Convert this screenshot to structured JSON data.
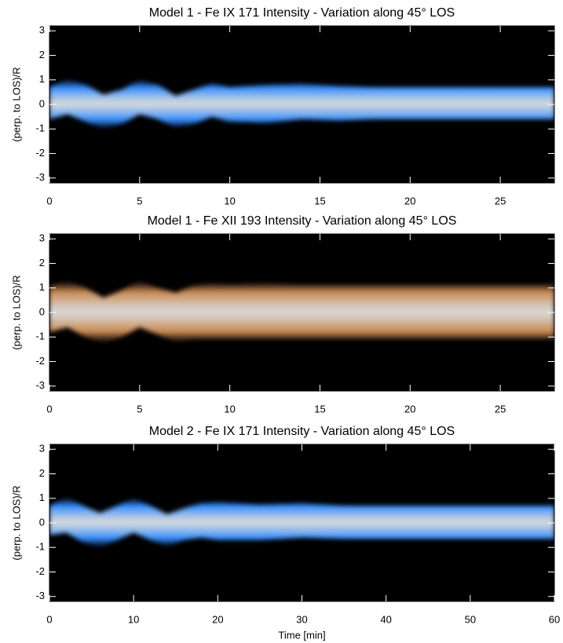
{
  "chart_data": [
    {
      "type": "band",
      "title": "Model 1 - Fe IX 171 Intensity - Variation along 45° LOS",
      "ylabel": "(perp. to LOS)/R",
      "color": "#2f8cff",
      "x": [
        0,
        1,
        2,
        3,
        4,
        5,
        6,
        7,
        8,
        9,
        10,
        12,
        14,
        16,
        18,
        20,
        22,
        24,
        26,
        28
      ],
      "series": [
        {
          "values": [
            0.7,
            1.05,
            0.8,
            0.4,
            0.6,
            1.0,
            0.8,
            0.35,
            0.6,
            0.85,
            0.7,
            0.8,
            0.85,
            0.75,
            0.7,
            0.7,
            0.7,
            0.7,
            0.7,
            0.7
          ]
        },
        {
          "values": [
            -0.6,
            -0.4,
            -0.7,
            -1.0,
            -0.8,
            -0.4,
            -0.6,
            -0.95,
            -0.8,
            -0.5,
            -0.7,
            -0.75,
            -0.6,
            -0.65,
            -0.6,
            -0.6,
            -0.6,
            -0.6,
            -0.6,
            -0.6
          ]
        }
      ],
      "xlim": [
        0,
        28
      ],
      "xticks": [
        0,
        5,
        10,
        15,
        20,
        25
      ],
      "ylim": [
        -3.2,
        3.2
      ],
      "yticks": [
        -3,
        -2,
        -1,
        0,
        1,
        2,
        3
      ]
    },
    {
      "type": "band",
      "title": "Model 1 - Fe XII 193 Intensity - Variation along 45° LOS",
      "ylabel": "(perp. to LOS)/R",
      "color": "#c8874c",
      "x": [
        0,
        1,
        2,
        3,
        4,
        5,
        6,
        7,
        8,
        9,
        10,
        12,
        14,
        16,
        18,
        20,
        22,
        24,
        26,
        28
      ],
      "series": [
        {
          "values": [
            1.1,
            1.3,
            1.0,
            0.6,
            0.9,
            1.3,
            1.0,
            0.8,
            1.1,
            1.2,
            1.15,
            1.2,
            1.15,
            1.15,
            1.15,
            1.15,
            1.15,
            1.15,
            1.15,
            1.15
          ]
        },
        {
          "values": [
            -0.8,
            -0.6,
            -1.0,
            -1.25,
            -1.0,
            -0.6,
            -0.9,
            -1.2,
            -1.1,
            -1.1,
            -1.1,
            -1.1,
            -1.1,
            -1.1,
            -1.1,
            -1.1,
            -1.1,
            -1.1,
            -1.1,
            -1.1
          ]
        }
      ],
      "xlim": [
        0,
        28
      ],
      "xticks": [
        0,
        5,
        10,
        15,
        20,
        25
      ],
      "ylim": [
        -3.2,
        3.2
      ],
      "yticks": [
        -3,
        -2,
        -1,
        0,
        1,
        2,
        3
      ]
    },
    {
      "type": "band",
      "title": "Model 2 - Fe IX 171 Intensity - Variation along 45° LOS",
      "ylabel": "(perp. to LOS)/R",
      "xlabel": "Time [min]",
      "color": "#2f8cff",
      "x": [
        0,
        2,
        4,
        6,
        8,
        10,
        12,
        14,
        16,
        18,
        20,
        25,
        30,
        35,
        40,
        45,
        50,
        55,
        60
      ],
      "series": [
        {
          "values": [
            0.7,
            1.05,
            0.7,
            0.4,
            0.7,
            1.0,
            0.7,
            0.35,
            0.6,
            0.8,
            0.85,
            0.75,
            0.8,
            0.7,
            0.7,
            0.7,
            0.7,
            0.7,
            0.7
          ]
        },
        {
          "values": [
            -0.5,
            -0.4,
            -0.8,
            -1.0,
            -0.7,
            -0.4,
            -0.7,
            -0.95,
            -0.7,
            -0.6,
            -0.7,
            -0.7,
            -0.6,
            -0.65,
            -0.65,
            -0.65,
            -0.65,
            -0.65,
            -0.65
          ]
        }
      ],
      "xlim": [
        0,
        60
      ],
      "xticks": [
        0,
        10,
        20,
        30,
        40,
        50,
        60
      ],
      "ylim": [
        -3.2,
        3.2
      ],
      "yticks": [
        -3,
        -2,
        -1,
        0,
        1,
        2,
        3
      ]
    }
  ]
}
